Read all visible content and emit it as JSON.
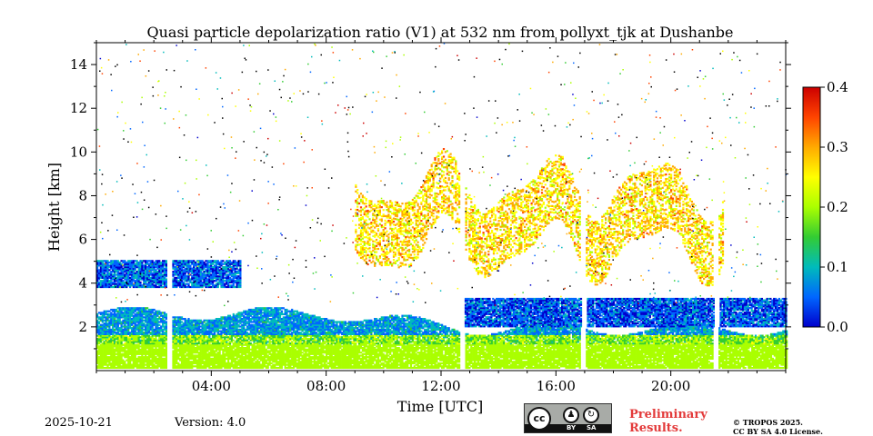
{
  "chart_data": {
    "type": "heatmap",
    "title": "Quasi particle depolarization ratio (V1) at 532 nm from pollyxt_tjk at Dushanbe",
    "xlabel": "Time [UTC]",
    "ylabel": "Height [km]",
    "xlim": [
      0,
      24
    ],
    "ylim": [
      0,
      15
    ],
    "x_ticks": [
      {
        "value": 4,
        "label": "04:00"
      },
      {
        "value": 8,
        "label": "08:00"
      },
      {
        "value": 12,
        "label": "12:00"
      },
      {
        "value": 16,
        "label": "16:00"
      },
      {
        "value": 20,
        "label": "20:00"
      }
    ],
    "y_ticks": [
      {
        "value": 2,
        "label": "2"
      },
      {
        "value": 4,
        "label": "4"
      },
      {
        "value": 6,
        "label": "6"
      },
      {
        "value": 8,
        "label": "8"
      },
      {
        "value": 10,
        "label": "10"
      },
      {
        "value": 12,
        "label": "12"
      },
      {
        "value": 14,
        "label": "14"
      }
    ],
    "colorbar": {
      "range": [
        0.0,
        0.4
      ],
      "ticks": [
        {
          "value": 0.0,
          "label": "0.0"
        },
        {
          "value": 0.1,
          "label": "0.1"
        },
        {
          "value": 0.2,
          "label": "0.2"
        },
        {
          "value": 0.3,
          "label": "0.3"
        },
        {
          "value": 0.4,
          "label": "0.4"
        }
      ],
      "colormap": [
        "#0000cc",
        "#0066ff",
        "#00bbbb",
        "#33cc33",
        "#aaff00",
        "#ffff00",
        "#ffaa00",
        "#ff4400",
        "#cc0000"
      ]
    },
    "gaps_hours": [
      2.55,
      12.7,
      16.95,
      21.55
    ],
    "layers": [
      {
        "name": "boundary layer",
        "t0": 0,
        "t1": 24,
        "h0": 0.1,
        "h1": 2.6,
        "value": 0.18
      },
      {
        "name": "lofted aerosol",
        "t0": 0,
        "t1": 5,
        "h0": 3.8,
        "h1": 5.0,
        "value": 0.05
      },
      {
        "name": "upper aerosol",
        "t0": 12.7,
        "t1": 24,
        "h0": 2.0,
        "h1": 3.3,
        "value": 0.04
      },
      {
        "name": "cirrus",
        "t0": 9,
        "t1": 21.8,
        "h0": 5.5,
        "h1": 10,
        "value": 0.27
      }
    ]
  },
  "footer": {
    "date": "2025-10-21",
    "version": "Version: 4.0",
    "license_badge": {
      "cc": "cc",
      "by": "BY",
      "sa": "SA"
    },
    "preliminary_line1": "Preliminary",
    "preliminary_line2": "Results.",
    "copyright_line1": "© TROPOS 2025.",
    "copyright_line2": "CC BY SA 4.0 License."
  }
}
